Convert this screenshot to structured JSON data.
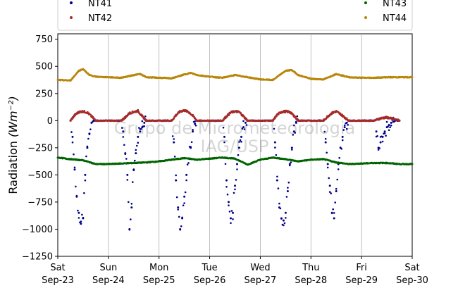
{
  "chart_data": {
    "type": "scatter",
    "ylabel": "Radiation",
    "ylabel_unit": "(Wm⁻²)",
    "ylim": [
      -1250,
      800
    ],
    "yticks": [
      750,
      500,
      250,
      0,
      -250,
      -500,
      -750,
      -1000,
      -1250
    ],
    "ytick_labels": [
      "750",
      "500",
      "250",
      "0",
      "−250",
      "−500",
      "−750",
      "−1000",
      "−1250"
    ],
    "xlim": [
      "2023-09-23",
      "2023-09-30"
    ],
    "xticks": [
      {
        "day": "Sat",
        "date": "Sep-23"
      },
      {
        "day": "Sun",
        "date": "Sep-24"
      },
      {
        "day": "Mon",
        "date": "Sep-25"
      },
      {
        "day": "Tue",
        "date": "Sep-26"
      },
      {
        "day": "Wed",
        "date": "Sep-27"
      },
      {
        "day": "Thu",
        "date": "Sep-28"
      },
      {
        "day": "Fri",
        "date": "Sep-29"
      },
      {
        "day": "Sat",
        "date": "Sep-30"
      }
    ],
    "grid": "vertical",
    "legend_position": "top",
    "watermark": [
      "Grupo de Micrometeorologia",
      "IAG/USP"
    ],
    "series": [
      {
        "name": "NT41",
        "color": "#00008b",
        "description": "daytime dips each day",
        "x": [
          "09-23 06:00",
          "09-23 07:00",
          "09-23 08:00",
          "09-23 09:00",
          "09-23 10:00",
          "09-23 11:00",
          "09-23 12:00",
          "09-23 13:00",
          "09-23 14:00",
          "09-23 15:00",
          "09-23 16:00",
          "09-23 17:00",
          "09-23 18:00",
          "09-24 06:00",
          "09-24 07:00",
          "09-24 08:00",
          "09-24 09:00",
          "09-24 10:00",
          "09-24 11:00",
          "09-24 12:00",
          "09-24 13:00",
          "09-24 14:00",
          "09-24 15:00",
          "09-24 16:00",
          "09-24 17:00",
          "09-24 18:00",
          "09-25 06:00",
          "09-25 07:00",
          "09-25 08:00",
          "09-25 09:00",
          "09-25 10:00",
          "09-25 11:00",
          "09-25 12:00",
          "09-25 13:00",
          "09-25 14:00",
          "09-25 15:00",
          "09-25 16:00",
          "09-25 17:00",
          "09-25 18:00",
          "09-26 06:00",
          "09-26 07:00",
          "09-26 08:00",
          "09-26 09:00",
          "09-26 10:00",
          "09-26 11:00",
          "09-26 12:00",
          "09-26 13:00",
          "09-26 14:00",
          "09-26 15:00",
          "09-26 16:00",
          "09-26 17:00",
          "09-26 18:00",
          "09-27 06:00",
          "09-27 07:00",
          "09-27 08:00",
          "09-27 09:00",
          "09-27 10:00",
          "09-27 11:00",
          "09-27 12:00",
          "09-27 13:00",
          "09-27 14:00",
          "09-27 15:00",
          "09-27 16:00",
          "09-27 17:00",
          "09-27 18:00",
          "09-28 06:00",
          "09-28 07:00",
          "09-28 08:00",
          "09-28 09:00",
          "09-28 10:00",
          "09-28 11:00",
          "09-28 12:00",
          "09-28 13:00",
          "09-28 14:00",
          "09-28 15:00",
          "09-28 16:00",
          "09-28 17:00",
          "09-28 18:00",
          "09-29 06:00",
          "09-29 07:00",
          "09-29 08:00",
          "09-29 09:00",
          "09-29 10:00",
          "09-29 11:00",
          "09-29 12:00",
          "09-29 13:00",
          "09-29 14:00",
          "09-29 15:00",
          "09-29 16:00",
          "09-29 17:00",
          "09-29 18:00"
        ],
        "y": [
          0,
          -150,
          -450,
          -700,
          -850,
          -950,
          -900,
          -500,
          -250,
          -120,
          -20,
          0,
          0,
          0,
          -100,
          -300,
          -500,
          -1000,
          -800,
          -450,
          -300,
          -150,
          -100,
          -60,
          -20,
          0,
          0,
          -200,
          -550,
          -800,
          -1000,
          -900,
          -700,
          -500,
          -350,
          -250,
          -100,
          -30,
          0,
          0,
          -150,
          -550,
          -750,
          -900,
          -850,
          -600,
          -400,
          -250,
          -150,
          -60,
          -20,
          0,
          0,
          -200,
          -550,
          -800,
          -900,
          -920,
          -850,
          -650,
          -400,
          -250,
          -100,
          -20,
          0,
          0,
          -200,
          -400,
          -600,
          -850,
          -900,
          -650,
          -400,
          -250,
          -150,
          -60,
          -20,
          0,
          0,
          -100,
          -250,
          -200,
          -150,
          -100,
          -60,
          -40,
          -20,
          -10,
          0,
          0,
          0
        ]
      },
      {
        "name": "NT42",
        "color": "#a52a2a",
        "description": "daytime humps, zero at night",
        "x": [
          "09-23 06:00",
          "09-23 08:00",
          "09-23 10:00",
          "09-23 12:00",
          "09-23 14:00",
          "09-23 16:00",
          "09-23 18:00",
          "09-24 06:00",
          "09-24 08:00",
          "09-24 10:00",
          "09-24 12:00",
          "09-24 14:00",
          "09-24 16:00",
          "09-24 18:00",
          "09-25 06:00",
          "09-25 08:00",
          "09-25 10:00",
          "09-25 12:00",
          "09-25 14:00",
          "09-25 16:00",
          "09-25 18:00",
          "09-26 06:00",
          "09-26 08:00",
          "09-26 10:00",
          "09-26 12:00",
          "09-26 14:00",
          "09-26 16:00",
          "09-26 18:00",
          "09-27 06:00",
          "09-27 08:00",
          "09-27 10:00",
          "09-27 12:00",
          "09-27 14:00",
          "09-27 16:00",
          "09-27 18:00",
          "09-28 06:00",
          "09-28 08:00",
          "09-28 10:00",
          "09-28 12:00",
          "09-28 14:00",
          "09-28 16:00",
          "09-28 18:00",
          "09-29 06:00",
          "09-29 08:00",
          "09-29 10:00",
          "09-29 12:00",
          "09-29 14:00",
          "09-29 16:00",
          "09-29 18:00"
        ],
        "y": [
          0,
          50,
          80,
          85,
          75,
          40,
          0,
          0,
          30,
          70,
          80,
          90,
          40,
          0,
          0,
          50,
          85,
          95,
          80,
          45,
          0,
          0,
          40,
          75,
          85,
          80,
          40,
          0,
          0,
          55,
          80,
          85,
          80,
          45,
          0,
          0,
          40,
          70,
          85,
          60,
          30,
          0,
          0,
          15,
          25,
          30,
          20,
          10,
          0
        ]
      },
      {
        "name": "NT43",
        "color": "#006400",
        "description": "nearly flat around -350 to -400",
        "x": [
          "09-23 00:00",
          "09-23 06:00",
          "09-23 12:00",
          "09-23 18:00",
          "09-24 00:00",
          "09-24 06:00",
          "09-24 12:00",
          "09-24 18:00",
          "09-25 00:00",
          "09-25 06:00",
          "09-25 12:00",
          "09-25 18:00",
          "09-26 00:00",
          "09-26 06:00",
          "09-26 12:00",
          "09-26 18:00",
          "09-27 00:00",
          "09-27 06:00",
          "09-27 12:00",
          "09-27 18:00",
          "09-28 00:00",
          "09-28 06:00",
          "09-28 12:00",
          "09-28 18:00",
          "09-29 00:00",
          "09-29 06:00",
          "09-29 12:00",
          "09-29 18:00",
          "09-30 00:00"
        ],
        "y": [
          -340,
          -355,
          -365,
          -400,
          -400,
          -395,
          -390,
          -385,
          -375,
          -360,
          -345,
          -360,
          -350,
          -340,
          -350,
          -405,
          -360,
          -340,
          -355,
          -375,
          -360,
          -355,
          -385,
          -400,
          -395,
          -390,
          -390,
          -400,
          -400
        ]
      },
      {
        "name": "NT44",
        "color": "#b8860b",
        "description": "around 380-470 with daily humps",
        "x": [
          "09-23 00:00",
          "09-23 06:00",
          "09-23 10:00",
          "09-23 12:00",
          "09-23 15:00",
          "09-23 18:00",
          "09-24 00:00",
          "09-24 06:00",
          "09-24 12:00",
          "09-24 15:00",
          "09-24 18:00",
          "09-25 00:00",
          "09-25 06:00",
          "09-25 12:00",
          "09-25 15:00",
          "09-25 18:00",
          "09-26 00:00",
          "09-26 06:00",
          "09-26 12:00",
          "09-26 18:00",
          "09-27 00:00",
          "09-27 06:00",
          "09-27 12:00",
          "09-27 15:00",
          "09-27 18:00",
          "09-28 00:00",
          "09-28 06:00",
          "09-28 12:00",
          "09-28 18:00",
          "09-29 00:00",
          "09-29 06:00",
          "09-29 12:00",
          "09-29 18:00",
          "09-30 00:00"
        ],
        "y": [
          375,
          370,
          460,
          475,
          420,
          405,
          400,
          395,
          420,
          430,
          400,
          395,
          390,
          425,
          440,
          420,
          405,
          395,
          420,
          400,
          380,
          375,
          460,
          465,
          420,
          385,
          380,
          430,
          400,
          395,
          395,
          400,
          400,
          400
        ]
      }
    ]
  }
}
